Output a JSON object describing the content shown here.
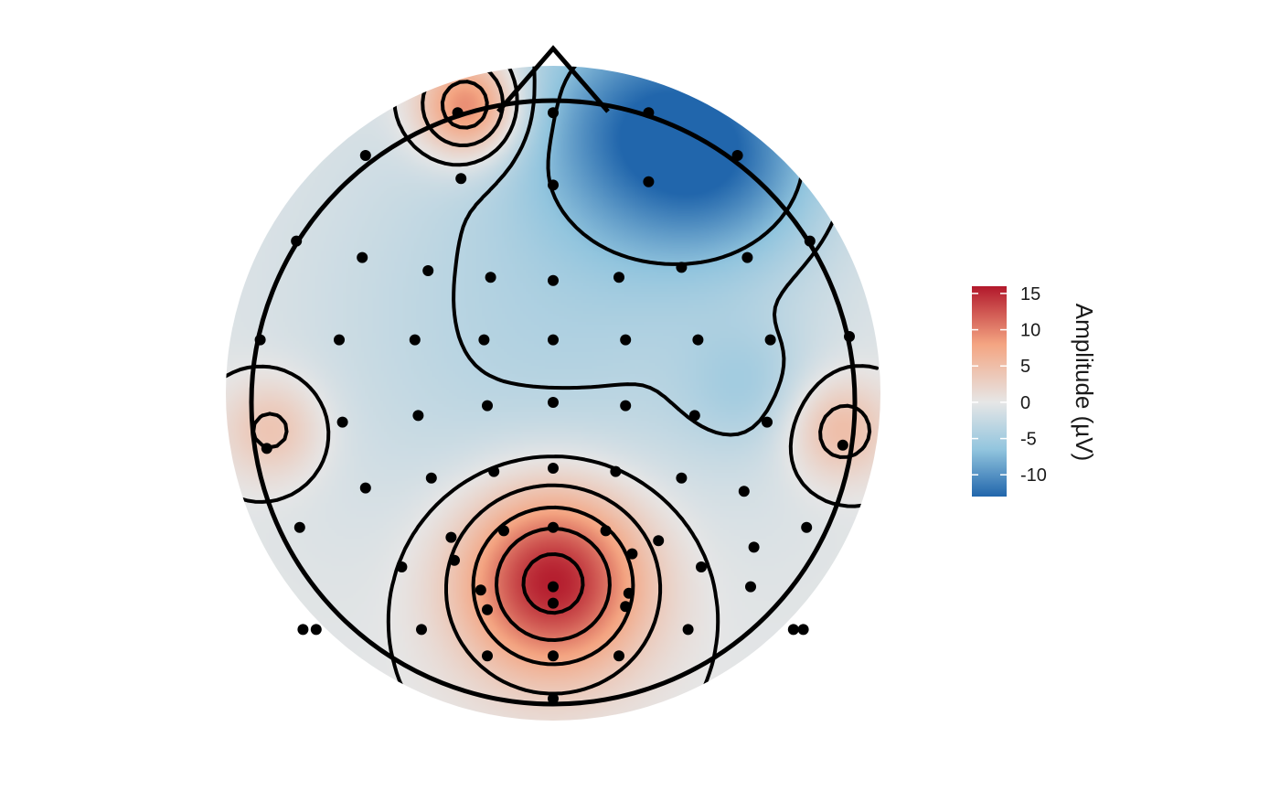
{
  "chart_data": {
    "type": "heatmap",
    "subtype": "eeg-topographic-map",
    "title": "",
    "colorbar": {
      "title": "Amplitude (µV)",
      "min": -13,
      "max": 16,
      "ticks": [
        15,
        10,
        5,
        0,
        -5,
        -10
      ],
      "tick_labels": [
        "15",
        "10",
        "5",
        "0",
        "-5",
        "-10"
      ],
      "colors": {
        "neg_max": "#2166ac",
        "neg_mid": "#92c5de",
        "zero": "#e6e6e6",
        "pos_mid": "#f4a582",
        "pos_max": "#b2182b"
      }
    },
    "head_outline": {
      "nose": "top",
      "show": true
    },
    "contours": {
      "show": true,
      "negative_style": "dashed"
    },
    "electrodes_shown": true,
    "sources": [
      {
        "x": 0.0,
        "y": -0.62,
        "amplitude": 17,
        "spread": 0.22
      },
      {
        "x": -0.28,
        "y": 0.95,
        "amplitude": 12,
        "spread": 0.12
      },
      {
        "x": 0.3,
        "y": 0.9,
        "amplitude": -9,
        "spread": 0.28
      },
      {
        "x": 0.6,
        "y": 0.78,
        "amplitude": -7,
        "spread": 0.25
      },
      {
        "x": 0.95,
        "y": -0.12,
        "amplitude": 6,
        "spread": 0.12
      },
      {
        "x": -0.93,
        "y": -0.12,
        "amplitude": 5,
        "spread": 0.12
      },
      {
        "x": 0.0,
        "y": 0.25,
        "amplitude": -4,
        "spread": 0.6
      },
      {
        "x": 0.65,
        "y": 0.02,
        "amplitude": -3,
        "spread": 0.15
      }
    ],
    "electrodes": [
      [
        -0.29,
        0.88
      ],
      [
        0.0,
        0.88
      ],
      [
        0.29,
        0.88
      ],
      [
        -0.57,
        0.75
      ],
      [
        -0.28,
        0.68
      ],
      [
        0.0,
        0.66
      ],
      [
        0.29,
        0.67
      ],
      [
        0.56,
        0.75
      ],
      [
        -0.78,
        0.49
      ],
      [
        -0.58,
        0.44
      ],
      [
        -0.38,
        0.4
      ],
      [
        -0.19,
        0.38
      ],
      [
        0.0,
        0.37
      ],
      [
        0.2,
        0.38
      ],
      [
        0.39,
        0.41
      ],
      [
        0.59,
        0.44
      ],
      [
        0.78,
        0.49
      ],
      [
        -0.89,
        0.19
      ],
      [
        -0.65,
        0.19
      ],
      [
        -0.42,
        0.19
      ],
      [
        -0.21,
        0.19
      ],
      [
        0.0,
        0.19
      ],
      [
        0.22,
        0.19
      ],
      [
        0.44,
        0.19
      ],
      [
        0.66,
        0.19
      ],
      [
        0.9,
        0.2
      ],
      [
        -0.87,
        -0.14
      ],
      [
        -0.64,
        -0.06
      ],
      [
        -0.41,
        -0.04
      ],
      [
        -0.2,
        -0.01
      ],
      [
        0.0,
        0.0
      ],
      [
        0.22,
        -0.01
      ],
      [
        0.43,
        -0.04
      ],
      [
        0.65,
        -0.06
      ],
      [
        0.88,
        -0.13
      ],
      [
        -0.57,
        -0.26
      ],
      [
        -0.37,
        -0.23
      ],
      [
        -0.18,
        -0.21
      ],
      [
        0.0,
        -0.2
      ],
      [
        0.19,
        -0.21
      ],
      [
        0.39,
        -0.23
      ],
      [
        0.58,
        -0.27
      ],
      [
        -0.77,
        -0.38
      ],
      [
        -0.31,
        -0.41
      ],
      [
        -0.15,
        -0.39
      ],
      [
        0.0,
        -0.38
      ],
      [
        0.16,
        -0.39
      ],
      [
        0.32,
        -0.42
      ],
      [
        0.77,
        -0.38
      ],
      [
        -0.46,
        -0.5
      ],
      [
        -0.3,
        -0.48
      ],
      [
        0.45,
        -0.5
      ],
      [
        0.6,
        -0.56
      ],
      [
        -0.22,
        -0.57
      ],
      [
        0.0,
        -0.56
      ],
      [
        0.23,
        -0.58
      ],
      [
        0.24,
        -0.46
      ],
      [
        0.61,
        -0.44
      ],
      [
        -0.4,
        -0.69
      ],
      [
        -0.2,
        -0.63
      ],
      [
        0.0,
        -0.61
      ],
      [
        0.22,
        -0.62
      ],
      [
        0.41,
        -0.69
      ],
      [
        -0.2,
        -0.77
      ],
      [
        0.0,
        -0.77
      ],
      [
        0.2,
        -0.77
      ],
      [
        -0.72,
        -0.69
      ],
      [
        0.73,
        -0.69
      ],
      [
        -0.76,
        -0.69
      ],
      [
        0.76,
        -0.69
      ],
      [
        0.0,
        -0.9
      ]
    ]
  }
}
